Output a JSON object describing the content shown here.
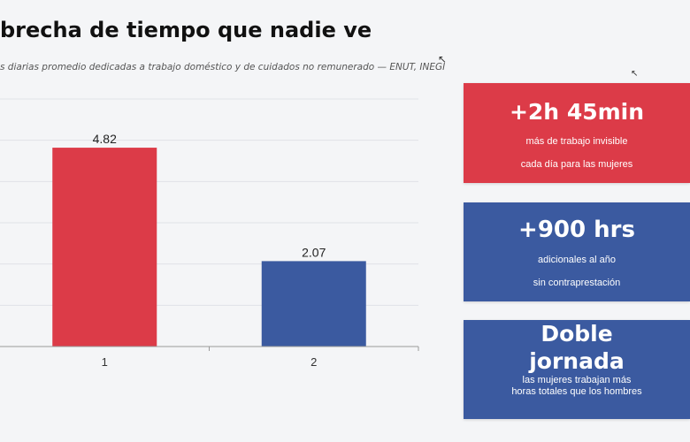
{
  "header": {
    "title": "brecha de tiempo que nadie ve",
    "subtitle": "s diarias promedio dedicadas a trabajo doméstico y de cuidados no remunerado — ENUT, INEGI"
  },
  "chart_data": {
    "type": "bar",
    "categories": [
      "1",
      "2"
    ],
    "values": [
      4.82,
      2.07
    ],
    "value_labels": [
      "4.82",
      "2.07"
    ],
    "colors": [
      "#dc3b48",
      "#3b5aa0"
    ],
    "ylim": [
      0,
      6
    ],
    "grid": true,
    "legend": "none"
  },
  "cards": [
    {
      "headline": "+2h 45min",
      "line1": "más de trabajo invisible",
      "line2": "cada día para las mujeres",
      "color": "#dc3b48"
    },
    {
      "headline": "+900 hrs",
      "line1": "adicionales al año",
      "line2": "sin contraprestación",
      "color": "#3b5aa0"
    },
    {
      "headline_line1": "Doble",
      "headline_line2": "jornada",
      "line1": "las mujeres trabajan más",
      "line2": "horas totales que los hombres",
      "color": "#3b5aa0"
    }
  ]
}
